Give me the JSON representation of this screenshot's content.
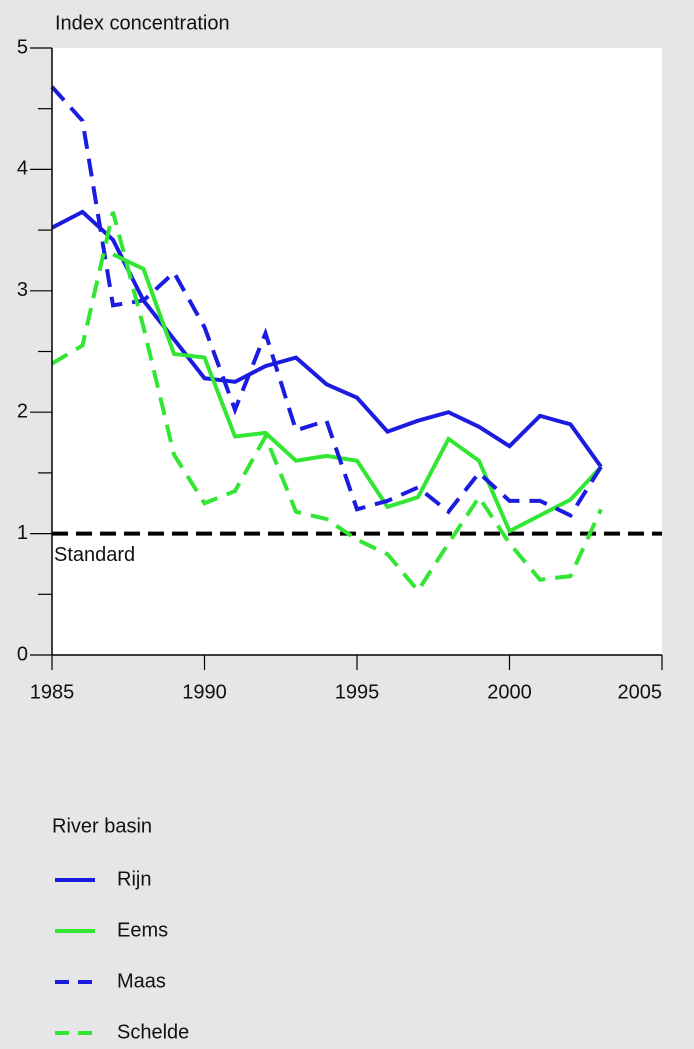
{
  "chart_data": {
    "type": "line",
    "y_label": "Index concentration",
    "x": [
      1985,
      1986,
      1987,
      1988,
      1989,
      1990,
      1991,
      1992,
      1993,
      1994,
      1995,
      1996,
      1997,
      1998,
      1999,
      2000,
      2001,
      2002,
      2003
    ],
    "series": [
      {
        "name": "Rijn",
        "color": "#1c1ce0",
        "dashed": false,
        "values": [
          3.52,
          3.65,
          3.42,
          2.92,
          2.6,
          2.28,
          2.25,
          2.38,
          2.45,
          2.23,
          2.12,
          1.84,
          1.93,
          2.0,
          1.88,
          1.72,
          1.97,
          1.9,
          1.55
        ]
      },
      {
        "name": "Eems",
        "color": "#33e633",
        "dashed": false,
        "values": [
          null,
          null,
          3.3,
          3.18,
          2.48,
          2.45,
          1.8,
          1.83,
          1.6,
          1.64,
          1.6,
          1.22,
          1.3,
          1.78,
          1.6,
          1.02,
          1.15,
          1.28,
          1.55
        ]
      },
      {
        "name": "Maas",
        "color": "#1c1ce0",
        "dashed": true,
        "values": [
          4.68,
          4.4,
          2.88,
          2.92,
          3.15,
          2.7,
          2.02,
          2.65,
          1.85,
          1.93,
          1.2,
          1.27,
          1.38,
          1.18,
          1.5,
          1.27,
          1.27,
          1.15,
          1.55
        ]
      },
      {
        "name": "Schelde",
        "color": "#33e633",
        "dashed": true,
        "values": [
          2.4,
          2.55,
          3.65,
          2.7,
          1.65,
          1.25,
          1.35,
          1.8,
          1.18,
          1.12,
          0.95,
          0.83,
          0.53,
          0.92,
          1.3,
          0.92,
          0.62,
          0.65,
          1.2
        ]
      }
    ],
    "reference_line": {
      "value": 1,
      "label": "Standard",
      "color": "#000000"
    },
    "legend_title": "River basin",
    "xlim": [
      1985,
      2005
    ],
    "xticks": [
      1985,
      1990,
      1995,
      2000,
      2005
    ],
    "ylim": [
      0,
      5
    ],
    "yticks": [
      0,
      1,
      2,
      3,
      4,
      5
    ],
    "yminorticks": [
      0.5,
      1.5,
      2.5,
      3.5,
      4.5
    ]
  }
}
